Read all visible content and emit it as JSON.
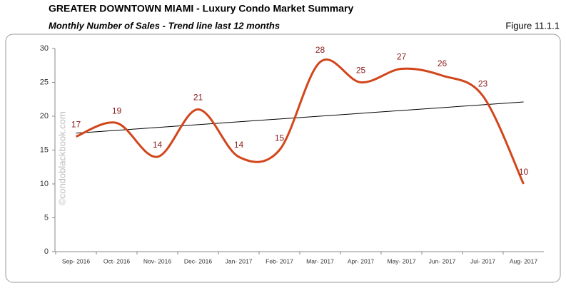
{
  "chart_data": {
    "type": "line",
    "title": "GREATER DOWNTOWN MIAMI - Luxury Condo Market Summary",
    "subtitle": "Monthly Number of Sales - Trend line last 12 months",
    "figure_label": "Figure 11.1.1",
    "watermark": "©condoblackbook.com",
    "categories": [
      "Sep- 2016",
      "Oct- 2016",
      "Nov- 2016",
      "Dec- 2016",
      "Jan- 2017",
      "Feb- 2017",
      "Mar- 2017",
      "Apr- 2017",
      "May- 2017",
      "Jun- 2017",
      "Jul- 2017",
      "Aug- 2017"
    ],
    "series": [
      {
        "name": "Number of Sales",
        "color": "#d2461c",
        "label_color": "#8b1a1a",
        "values": [
          17,
          19,
          14,
          21,
          14,
          15,
          28,
          25,
          27,
          26,
          23,
          10
        ]
      }
    ],
    "trend_line": {
      "color": "#000000",
      "values": [
        17.5,
        22.1
      ]
    },
    "ylim": [
      0,
      30
    ],
    "yticks": [
      0,
      5,
      10,
      15,
      20,
      25,
      30
    ],
    "grid": false
  }
}
